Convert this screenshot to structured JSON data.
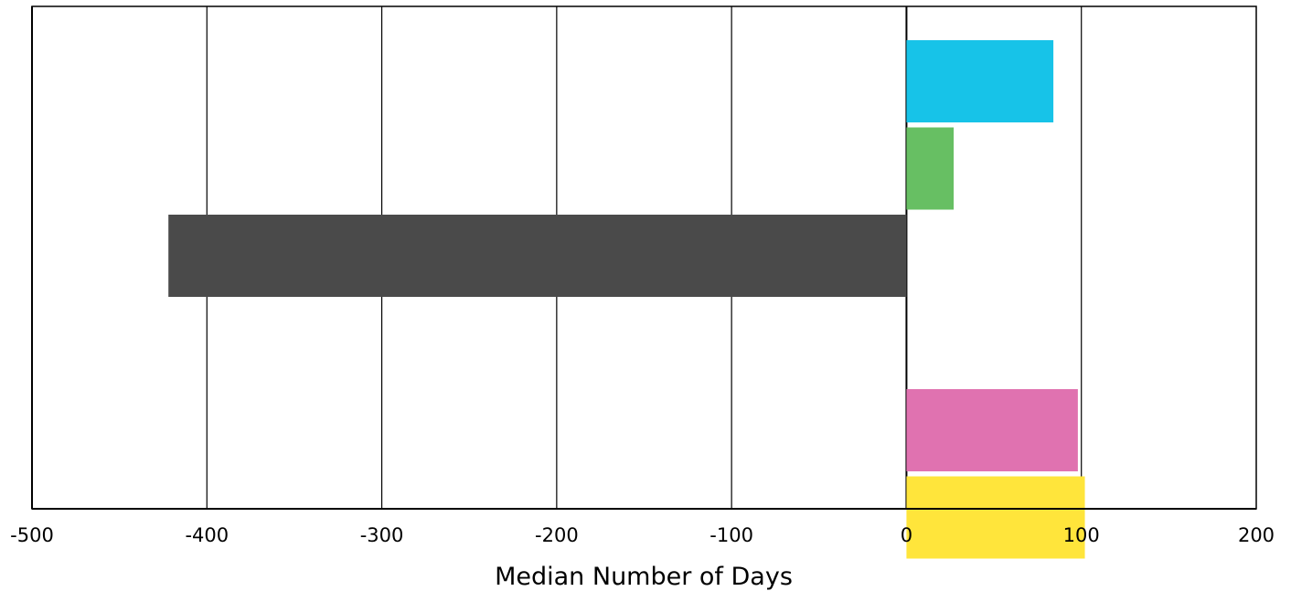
{
  "chart_data": {
    "type": "bar",
    "orientation": "horizontal",
    "title": "",
    "xlabel": "Median Number of Days",
    "ylabel": "",
    "xlim": [
      -500,
      200
    ],
    "xticks": [
      -500,
      -400,
      -300,
      -200,
      -100,
      0,
      100,
      200
    ],
    "grid": "vertical",
    "legend": "none",
    "bars": [
      {
        "value": 84,
        "color": "#17c3e8"
      },
      {
        "value": 27,
        "color": "#67bf63"
      },
      {
        "value": -422,
        "color": "#4a4a4a"
      },
      {
        "value": null,
        "color": null
      },
      {
        "value": 98,
        "color": "#e072b0"
      },
      {
        "value": 102,
        "color": "#ffe53b"
      }
    ]
  }
}
